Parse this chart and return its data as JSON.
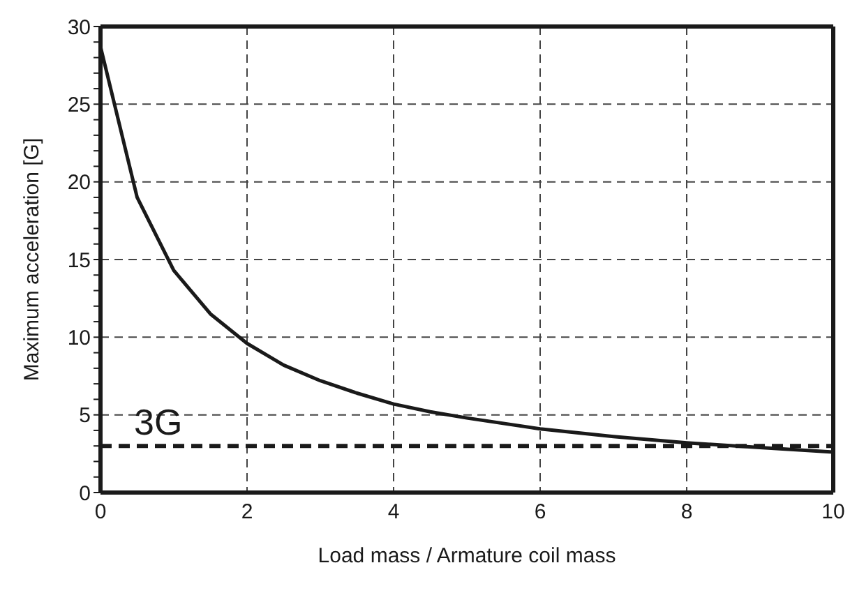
{
  "chart_data": {
    "type": "line",
    "xlabel": "Load mass / Armature coil mass",
    "ylabel": "Maximum acceleration [G]",
    "x": [
      0,
      0.5,
      1,
      1.5,
      2,
      2.5,
      3,
      3.5,
      4,
      4.5,
      5,
      6,
      7,
      8,
      9,
      10
    ],
    "series": [
      {
        "color": "#1a1a1a",
        "values": [
          28.7,
          19,
          14.3,
          11.5,
          9.6,
          8.2,
          7.2,
          6.4,
          5.7,
          5.2,
          4.8,
          4.1,
          3.6,
          3.2,
          2.9,
          2.6
        ]
      }
    ],
    "xlim": [
      0,
      10
    ],
    "xticks": [
      0,
      2,
      4,
      6,
      8,
      10
    ],
    "ylim": [
      0,
      30
    ],
    "yticks": [
      0,
      {
        "value": 1,
        "label": null
      },
      {
        "value": 2,
        "label": null
      },
      {
        "value": 3,
        "label": null
      },
      {
        "value": 4,
        "label": null
      },
      5,
      {
        "value": 6,
        "label": null
      },
      {
        "value": 7,
        "label": null
      },
      {
        "value": 8,
        "label": null
      },
      {
        "value": 9,
        "label": null
      },
      10,
      {
        "value": 11,
        "label": null
      },
      {
        "value": 12,
        "label": null
      },
      {
        "value": 13,
        "label": null
      },
      {
        "value": 14,
        "label": null
      },
      15,
      {
        "value": 16,
        "label": null
      },
      {
        "value": 17,
        "label": null
      },
      {
        "value": 18,
        "label": null
      },
      {
        "value": 19,
        "label": null
      },
      20,
      {
        "value": 21,
        "label": null
      },
      {
        "value": 22,
        "label": null
      },
      {
        "value": 23,
        "label": null
      },
      {
        "value": 24,
        "label": null
      },
      25,
      {
        "value": 26,
        "label": null
      },
      {
        "value": 27,
        "label": null
      },
      {
        "value": 28,
        "label": null
      },
      {
        "value": 29,
        "label": null
      },
      30
    ],
    "ref_lines": [
      {
        "axis": "y",
        "value": 3,
        "label": "3G",
        "line_style": "dashed",
        "color": "#1a1a1a"
      }
    ],
    "grid": true,
    "marker": "none",
    "line_style": "solid"
  }
}
